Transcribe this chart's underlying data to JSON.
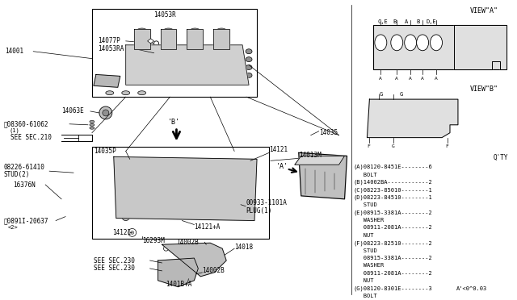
{
  "bg_color": "#ffffff",
  "line_color": "#000000",
  "text_color": "#000000",
  "fig_width": 6.4,
  "fig_height": 3.72,
  "parts_list": [
    "(A)08120-8451E--------6",
    "   BOLT",
    "(B)14002BA------------2",
    "(C)08223-85010--------1",
    "(D)08223-84510--------1",
    "   STUD",
    "(E)08915-3381A--------2",
    "   WASHER",
    "   08911-2081A--------2",
    "   NUT",
    "(F)08223-82510--------2",
    "   STUD",
    "   08915-3381A--------2",
    "   WASHER",
    "   08911-2081A--------2",
    "   NUT",
    "(G)08120-8301E--------3",
    "   BOLT"
  ],
  "view_a_label": "VIEW\"A\"",
  "view_b_label": "VIEW\"B\"",
  "qty_label": "Q'TY",
  "footer": "A'<0^0.03"
}
